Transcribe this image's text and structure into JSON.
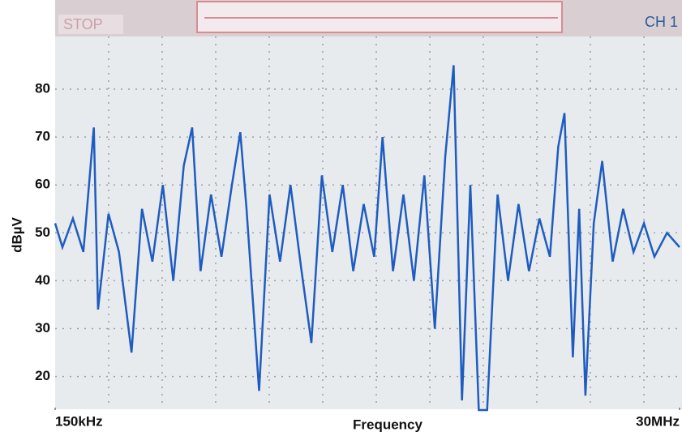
{
  "chart_data": {
    "type": "line",
    "x_label": "Frequency",
    "y_label": "dBµV",
    "annotations": [
      "STOP",
      "CH 1"
    ],
    "xlim": [
      150000,
      30000000
    ],
    "xticks": [
      {
        "value": 150000,
        "label": "150kHz"
      },
      {
        "value": 30000000,
        "label": "30MHz"
      }
    ],
    "ylim": [
      13.5,
      91
    ],
    "yticks": [
      20,
      30,
      40,
      50,
      60,
      70,
      80
    ],
    "grid": true,
    "series": [
      {
        "color": "#1f5cc0",
        "x": [
          150000,
          500000,
          1000000,
          1500000,
          2000000,
          2200000,
          2700000,
          3200000,
          3800000,
          4300000,
          4800000,
          5300000,
          5800000,
          6300000,
          6700000,
          7100000,
          7600000,
          8100000,
          8600000,
          9000000,
          9300000,
          9900000,
          10400000,
          10900000,
          11400000,
          11900000,
          12400000,
          12900000,
          13400000,
          13900000,
          14400000,
          14900000,
          15400000,
          15800000,
          16300000,
          16800000,
          17300000,
          17800000,
          18300000,
          18800000,
          19200000,
          19600000,
          20000000,
          20400000,
          20800000,
          21300000,
          21800000,
          22300000,
          22800000,
          23300000,
          23800000,
          24200000,
          24500000,
          24900000,
          25200000,
          25500000,
          25900000,
          26300000,
          26800000,
          27300000,
          27800000,
          28300000,
          28800000,
          29400000,
          30000000
        ],
        "values": [
          52,
          47,
          53,
          46,
          72,
          34,
          54,
          46,
          25,
          55,
          44,
          60,
          40,
          64,
          72,
          42,
          58,
          45,
          60,
          71,
          55,
          17,
          58,
          44,
          60,
          43,
          27,
          62,
          46,
          60,
          42,
          56,
          45,
          70,
          42,
          58,
          40,
          62,
          30,
          66,
          85,
          15,
          60,
          13,
          13,
          58,
          40,
          56,
          42,
          53,
          45,
          68,
          75,
          24,
          55,
          16,
          52,
          65,
          44,
          55,
          46,
          52,
          45,
          50,
          47
        ]
      }
    ]
  }
}
